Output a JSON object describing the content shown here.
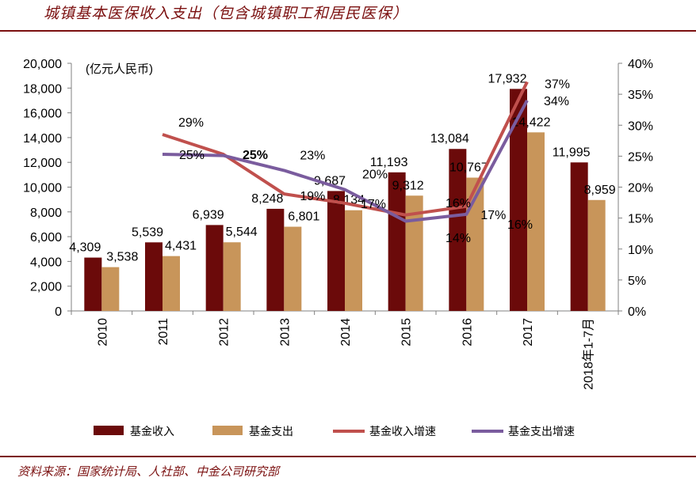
{
  "page": {
    "title": "城镇基本医保收入支出（包含城镇职工和居民医保）",
    "source": "资料来源：国家统计局、人社部、中金公司研究部"
  },
  "chart_data": {
    "type": "bar",
    "title": "城镇基本医保收入支出（包含城镇职工和居民医保）",
    "unit_label": "(亿元人民币)",
    "categories": [
      "2010",
      "2011",
      "2012",
      "2013",
      "2014",
      "2015",
      "2016",
      "2017",
      "2018年1-7月"
    ],
    "series": [
      {
        "name": "基金收入",
        "type": "bar",
        "axis": "left",
        "color": "#6b0a0a",
        "values": [
          4309,
          5539,
          6939,
          8248,
          9687,
          11193,
          13084,
          17932,
          11995
        ],
        "labels": [
          "4,309",
          "5,539",
          "6,939",
          "8,248",
          "9,687",
          "11,193",
          "13,084",
          "17,932",
          "11,995"
        ]
      },
      {
        "name": "基金支出",
        "type": "bar",
        "axis": "left",
        "color": "#c8955a",
        "values": [
          3538,
          4431,
          5544,
          6801,
          8134,
          9312,
          10767,
          14422,
          8959
        ],
        "labels": [
          "3,538",
          "4,431",
          "5,544",
          "6,801",
          "8,134",
          "9,312",
          "10,767",
          "14,422",
          "8,959"
        ]
      },
      {
        "name": "基金收入增速",
        "type": "line",
        "axis": "right",
        "color": "#c0504d",
        "values": [
          null,
          28.5,
          25.3,
          18.9,
          17.4,
          15.5,
          16.9,
          37.0,
          null
        ],
        "labels": [
          null,
          "29%",
          "25%",
          "19%",
          "17%",
          "16%",
          "17%",
          "37%",
          null
        ]
      },
      {
        "name": "基金支出增速",
        "type": "line",
        "axis": "right",
        "color": "#7a5c9e",
        "values": [
          null,
          25.3,
          25.1,
          22.7,
          19.6,
          14.5,
          15.6,
          34.0,
          null
        ],
        "labels": [
          null,
          "25%",
          "25%",
          "23%",
          "20%",
          "14%",
          "16%",
          "34%",
          null
        ]
      }
    ],
    "y_left": {
      "min": 0,
      "max": 20000,
      "step": 2000,
      "ticks": [
        "0",
        "2,000",
        "4,000",
        "6,000",
        "8,000",
        "10,000",
        "12,000",
        "14,000",
        "16,000",
        "18,000",
        "20,000"
      ]
    },
    "y_right": {
      "min": 0,
      "max": 40,
      "step": 5,
      "ticks": [
        "0%",
        "5%",
        "10%",
        "15%",
        "20%",
        "25%",
        "30%",
        "35%",
        "40%"
      ]
    },
    "grid": false,
    "legend": [
      "基金收入",
      "基金支出",
      "基金收入增速",
      "基金支出增速"
    ],
    "legend_position": "bottom"
  }
}
